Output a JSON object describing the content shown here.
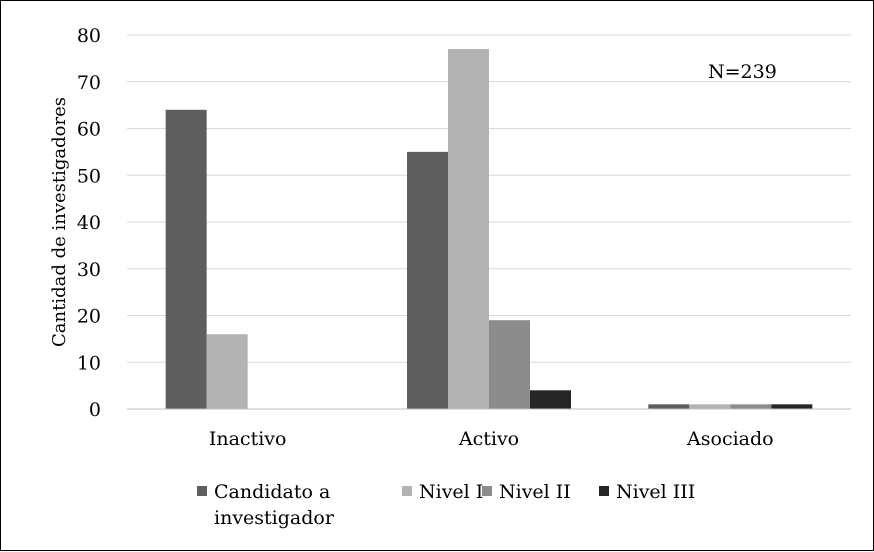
{
  "chart_data": {
    "type": "bar",
    "title": "",
    "xlabel": "",
    "ylabel": "Cantidad de investigadores",
    "ylim": [
      0,
      80
    ],
    "yticks": [
      0,
      10,
      20,
      30,
      40,
      50,
      60,
      70,
      80
    ],
    "grid": true,
    "legend_position": "bottom",
    "annotation": "N=239",
    "categories": [
      "Inactivo",
      "Activo",
      "Asociado"
    ],
    "series": [
      {
        "name": "Candidato a investigador",
        "name_lines": [
          "Candidato a",
          "investigador"
        ],
        "color": "#5e5e5e",
        "values": [
          64,
          55,
          1
        ]
      },
      {
        "name": "Nivel I",
        "name_lines": [
          "Nivel I"
        ],
        "color": "#b3b3b3",
        "values": [
          16,
          77,
          1
        ]
      },
      {
        "name": "Nivel II",
        "name_lines": [
          "Nivel II"
        ],
        "color": "#8c8c8c",
        "values": [
          0,
          19,
          1
        ]
      },
      {
        "name": "Nivel III",
        "name_lines": [
          "Nivel III"
        ],
        "color": "#262626",
        "values": [
          0,
          4,
          1
        ]
      }
    ]
  }
}
